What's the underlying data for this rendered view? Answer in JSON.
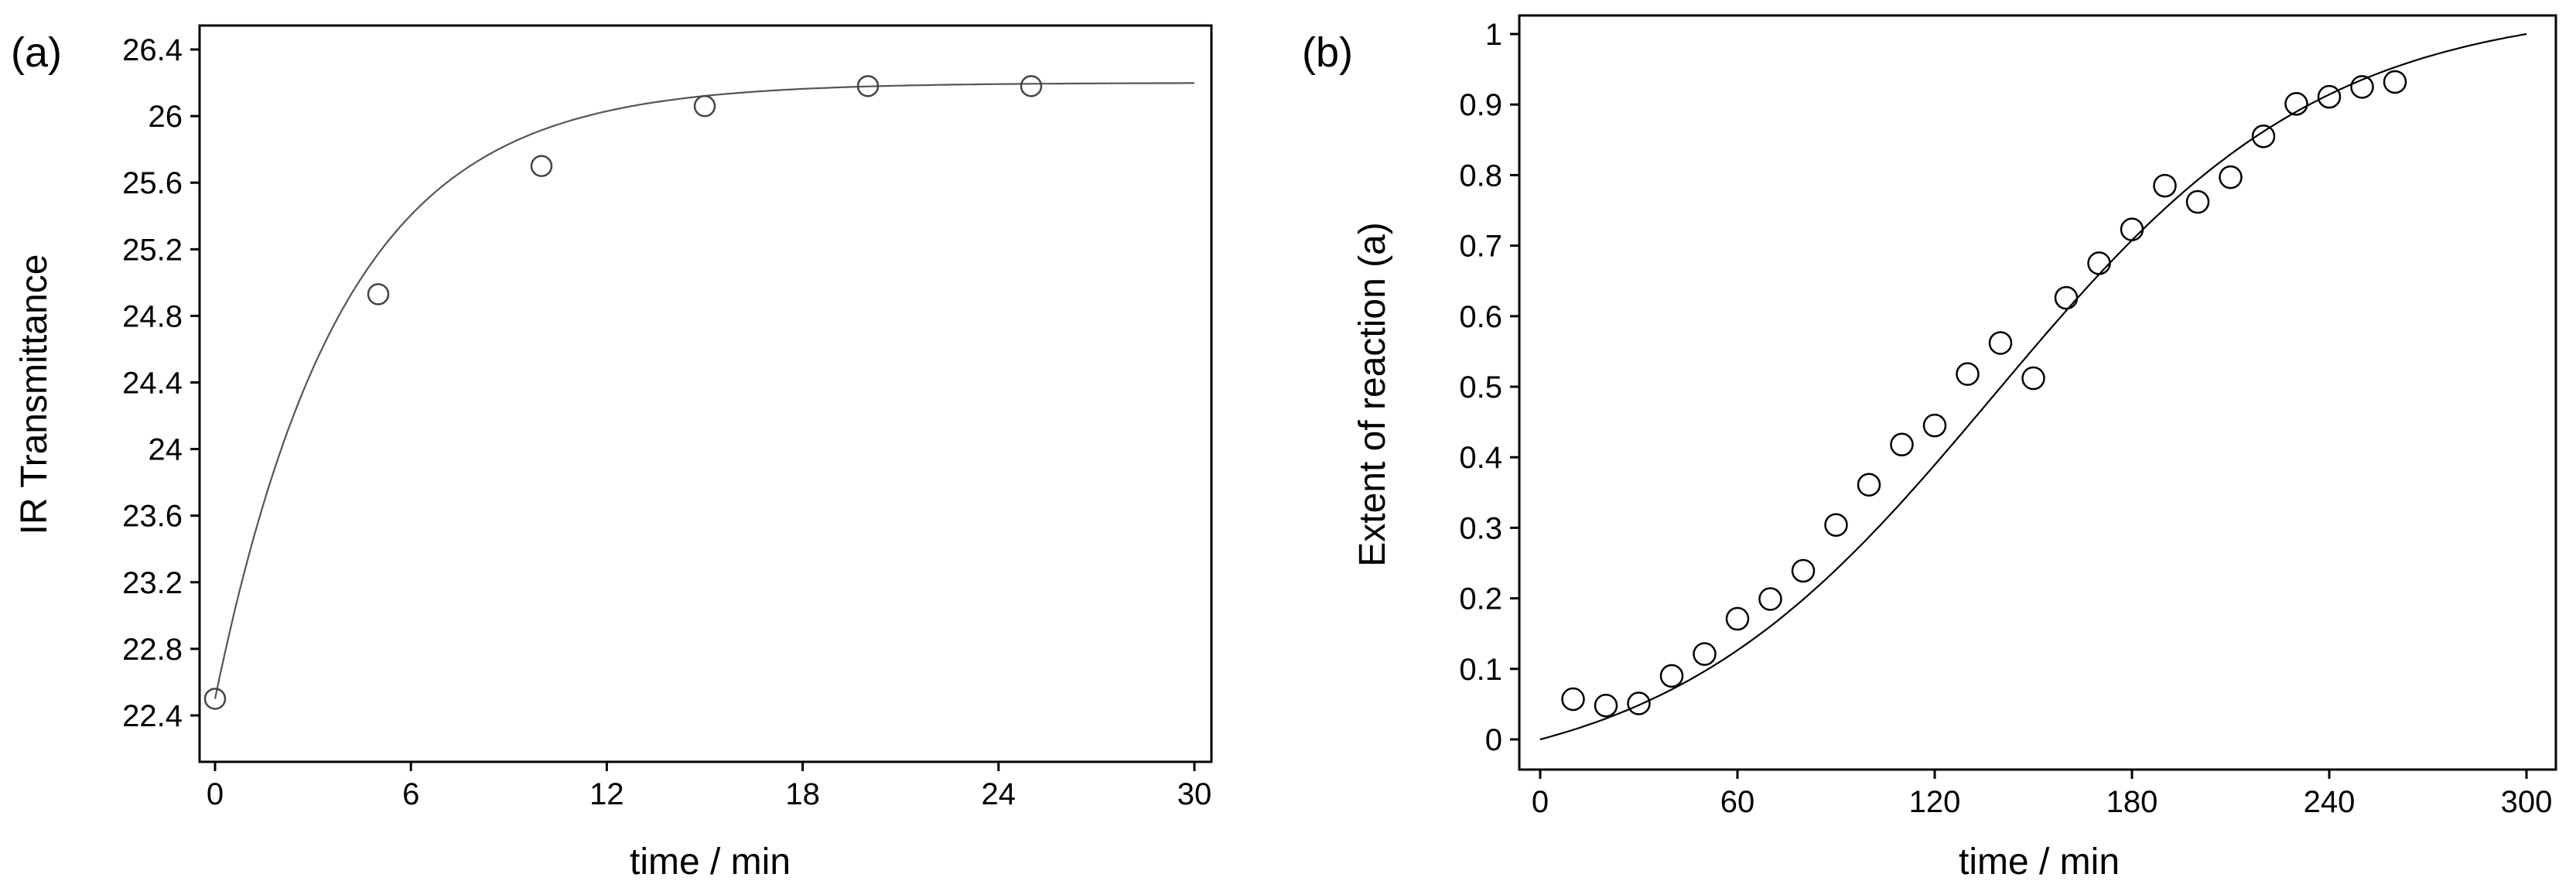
{
  "chart_data": [
    {
      "type": "scatter",
      "panel_label": "(a)",
      "xlabel": "time / min",
      "ylabel": "IR Transmittance",
      "xlim": [
        0,
        30
      ],
      "ylim": [
        22.4,
        26.4
      ],
      "xticks": [
        0,
        6,
        12,
        18,
        24,
        30
      ],
      "yticks": [
        22.4,
        22.8,
        23.2,
        23.6,
        24,
        24.4,
        24.8,
        25.2,
        25.6,
        26,
        26.4
      ],
      "grid": false,
      "legend": "none",
      "series": [
        {
          "marker": "open-circle",
          "x": [
            0,
            5,
            10,
            15,
            20,
            25
          ],
          "y": [
            22.5,
            24.93,
            25.7,
            26.06,
            26.18,
            26.18
          ]
        }
      ],
      "fit_curve": {
        "kind": "exponential-rise",
        "y0": 22.5,
        "y_inf": 26.2,
        "tau": 3.9,
        "x_range": [
          0,
          30
        ]
      }
    },
    {
      "type": "scatter",
      "panel_label": "(b)",
      "xlabel": "time / min",
      "ylabel": "Extent of reaction (a)",
      "xlim": [
        0,
        300
      ],
      "ylim": [
        0,
        1
      ],
      "xticks": [
        0,
        60,
        120,
        180,
        240,
        300
      ],
      "yticks": [
        0,
        0.1,
        0.2,
        0.3,
        0.4,
        0.5,
        0.6,
        0.7,
        0.8,
        0.9,
        1
      ],
      "grid": false,
      "legend": "none",
      "series": [
        {
          "marker": "open-circle",
          "x": [
            10,
            20,
            30,
            40,
            50,
            60,
            70,
            80,
            90,
            100,
            110,
            120,
            130,
            140,
            150,
            160,
            170,
            180,
            190,
            200,
            210,
            220,
            230,
            240,
            250,
            260
          ],
          "y": [
            0.057,
            0.048,
            0.051,
            0.09,
            0.121,
            0.171,
            0.199,
            0.239,
            0.304,
            0.361,
            0.418,
            0.445,
            0.518,
            0.562,
            0.512,
            0.626,
            0.675,
            0.723,
            0.785,
            0.762,
            0.797,
            0.855,
            0.901,
            0.911,
            0.925,
            0.932
          ]
        }
      ],
      "fit_curve": {
        "kind": "sigmoid",
        "midpoint": 138,
        "scale": 50,
        "x_range": [
          0,
          300
        ]
      }
    }
  ]
}
